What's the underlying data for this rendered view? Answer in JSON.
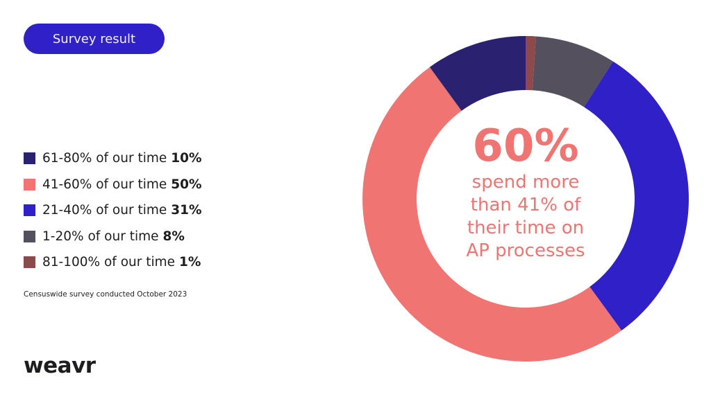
{
  "header": {
    "badge": "Survey result"
  },
  "chart_data": {
    "type": "pie",
    "donut": true,
    "start": "top, clockwise",
    "slices": [
      {
        "label": "81-100% of our time",
        "value": 1,
        "color": "#8e4a4a"
      },
      {
        "label": "1-20% of our time",
        "value": 8,
        "color": "#54505d"
      },
      {
        "label": "21-40% of our time",
        "value": 31,
        "color": "#2f20c7"
      },
      {
        "label": "41-60% of our time",
        "value": 50,
        "color": "#f07472"
      },
      {
        "label": "61-80% of our time",
        "value": 10,
        "color": "#2a2270"
      }
    ],
    "legend": [
      {
        "label": "61-80% of our time",
        "value_label": "10%",
        "color": "#2a2270"
      },
      {
        "label": "41-60% of our time",
        "value_label": "50%",
        "color": "#f07472"
      },
      {
        "label": "21-40% of our time",
        "value_label": "31%",
        "color": "#2f20c7"
      },
      {
        "label": "1-20% of our time",
        "value_label": "8%",
        "color": "#54505d"
      },
      {
        "label": "81-100% of our time",
        "value_label": "1%",
        "color": "#8e4a4a"
      }
    ],
    "legend_position": "left",
    "center_value": "60%",
    "center_text": "spend more than 41% of their time on AP processes"
  },
  "footer": {
    "source": "Censuswide survey conducted October 2023",
    "logo": "weavr"
  }
}
